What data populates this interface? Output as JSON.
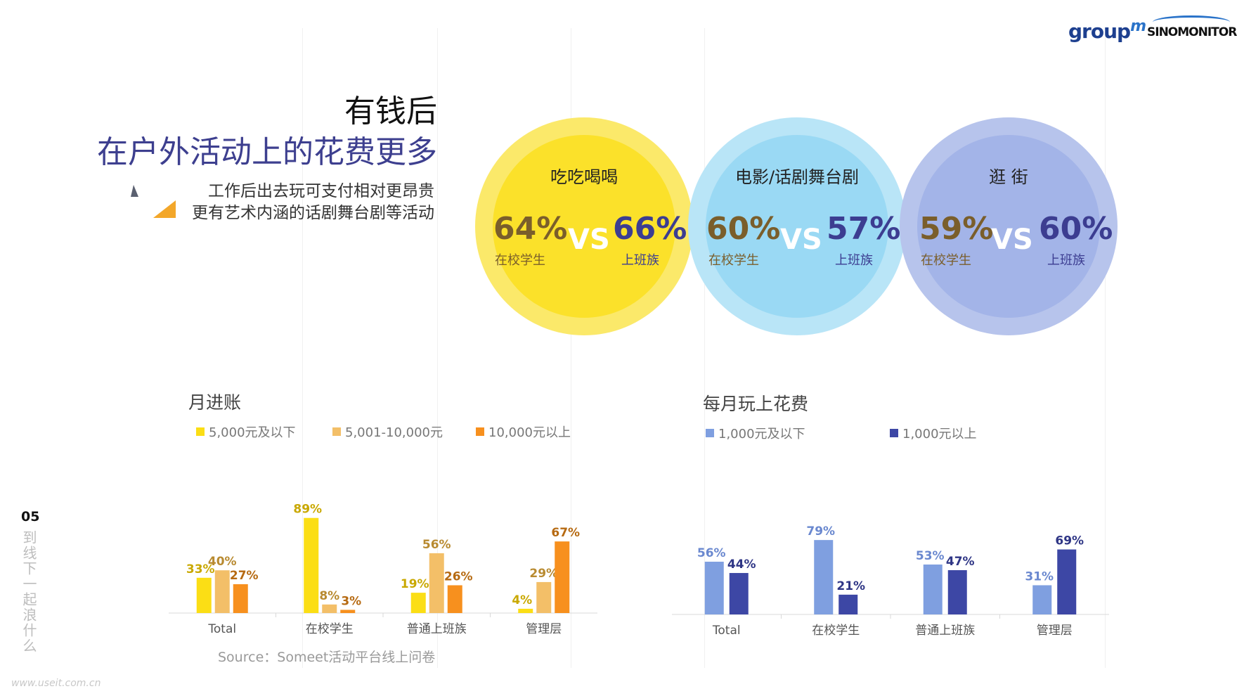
{
  "brand": {
    "groupm": "group",
    "groupm_m": "m",
    "sinomonitor": "SINOMONITOR"
  },
  "heading": {
    "line1": "有钱后",
    "line2": "在户外活动上的花费更多"
  },
  "subtext": {
    "line1": "工作后出去玩可支付相对更昂贵",
    "line2": "更有艺术内涵的话剧舞台剧等活动"
  },
  "comparisons": [
    {
      "label": "吃吃喝喝",
      "left_value": "64%",
      "left_label": "在校学生",
      "vs": "VS",
      "right_value": "66%",
      "right_label": "上班族",
      "outer_color": "#fbe96a",
      "inner_color": "#fbe12a"
    },
    {
      "label": "电影/话剧舞台剧",
      "left_value": "60%",
      "left_label": "在校学生",
      "vs": "VS",
      "right_value": "57%",
      "right_label": "上班族",
      "outer_color": "#b9e5f7",
      "inner_color": "#9ad9f4"
    },
    {
      "label": "逛 街",
      "left_value": "59%",
      "left_label": "在校学生",
      "vs": "VS",
      "right_value": "60%",
      "right_label": "上班族",
      "outer_color": "#b7c4ec",
      "inner_color": "#a3b4e8"
    }
  ],
  "chart_data": [
    {
      "type": "bar",
      "title": "月进账",
      "categories": [
        "Total",
        "在校学生",
        "普通上班族",
        "管理层"
      ],
      "series": [
        {
          "name": "5,000元及以下",
          "values": [
            33,
            89,
            19,
            4
          ],
          "color": "#fbde15",
          "label_color": "#c9a800"
        },
        {
          "name": "5,001-10,000元",
          "values": [
            40,
            8,
            56,
            29
          ],
          "color": "#f3bf68",
          "label_color": "#b88a30"
        },
        {
          "name": "10,000元以上",
          "values": [
            27,
            3,
            26,
            67
          ],
          "color": "#f7901e",
          "label_color": "#b66a12"
        }
      ],
      "ylim": [
        0,
        100
      ],
      "legend": "top"
    },
    {
      "type": "bar",
      "title": "每月玩上花费",
      "categories": [
        "Total",
        "在校学生",
        "普通上班族",
        "管理层"
      ],
      "series": [
        {
          "name": "1,000元及以下",
          "values": [
            56,
            79,
            53,
            31
          ],
          "color": "#7f9fe0",
          "label_color": "#6a88cf"
        },
        {
          "name": "1,000元以上",
          "values": [
            44,
            21,
            47,
            69
          ],
          "color": "#3d47a5",
          "label_color": "#2e3585"
        }
      ],
      "ylim": [
        0,
        100
      ],
      "legend": "top"
    }
  ],
  "source": "Source：Someet活动平台线上问卷",
  "page": {
    "number": "05",
    "vertical_text": "到线下一起浪什么"
  },
  "watermark": "www.useit.com.cn"
}
